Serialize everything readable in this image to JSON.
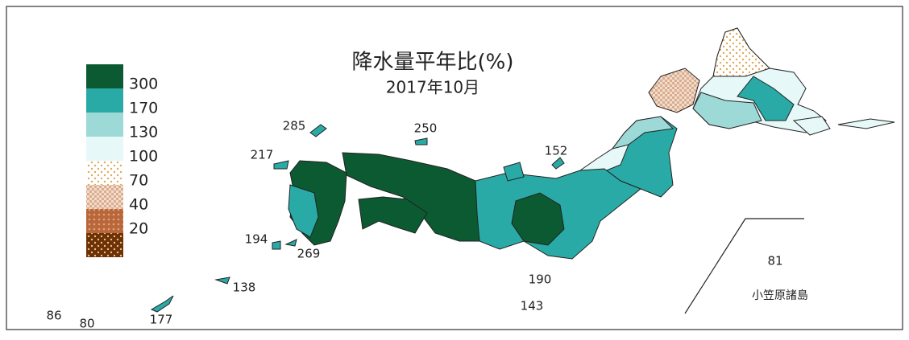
{
  "title": "降水量平年比(%)",
  "subtitle": "2017年10月",
  "legend": {
    "colors": [
      "#0b5a32",
      "#2aaaa6",
      "#9dd9d6",
      "#e6f8f8",
      "dots-cream",
      "check-tan",
      "dots-brown",
      "dots-dark"
    ],
    "labels": [
      300,
      170,
      130,
      100,
      70,
      40,
      20
    ]
  },
  "stations": [
    285,
    250,
    217,
    152,
    194,
    269,
    138,
    190,
    86,
    80,
    177,
    143,
    81
  ],
  "inset_label": "小笠原諸島"
}
